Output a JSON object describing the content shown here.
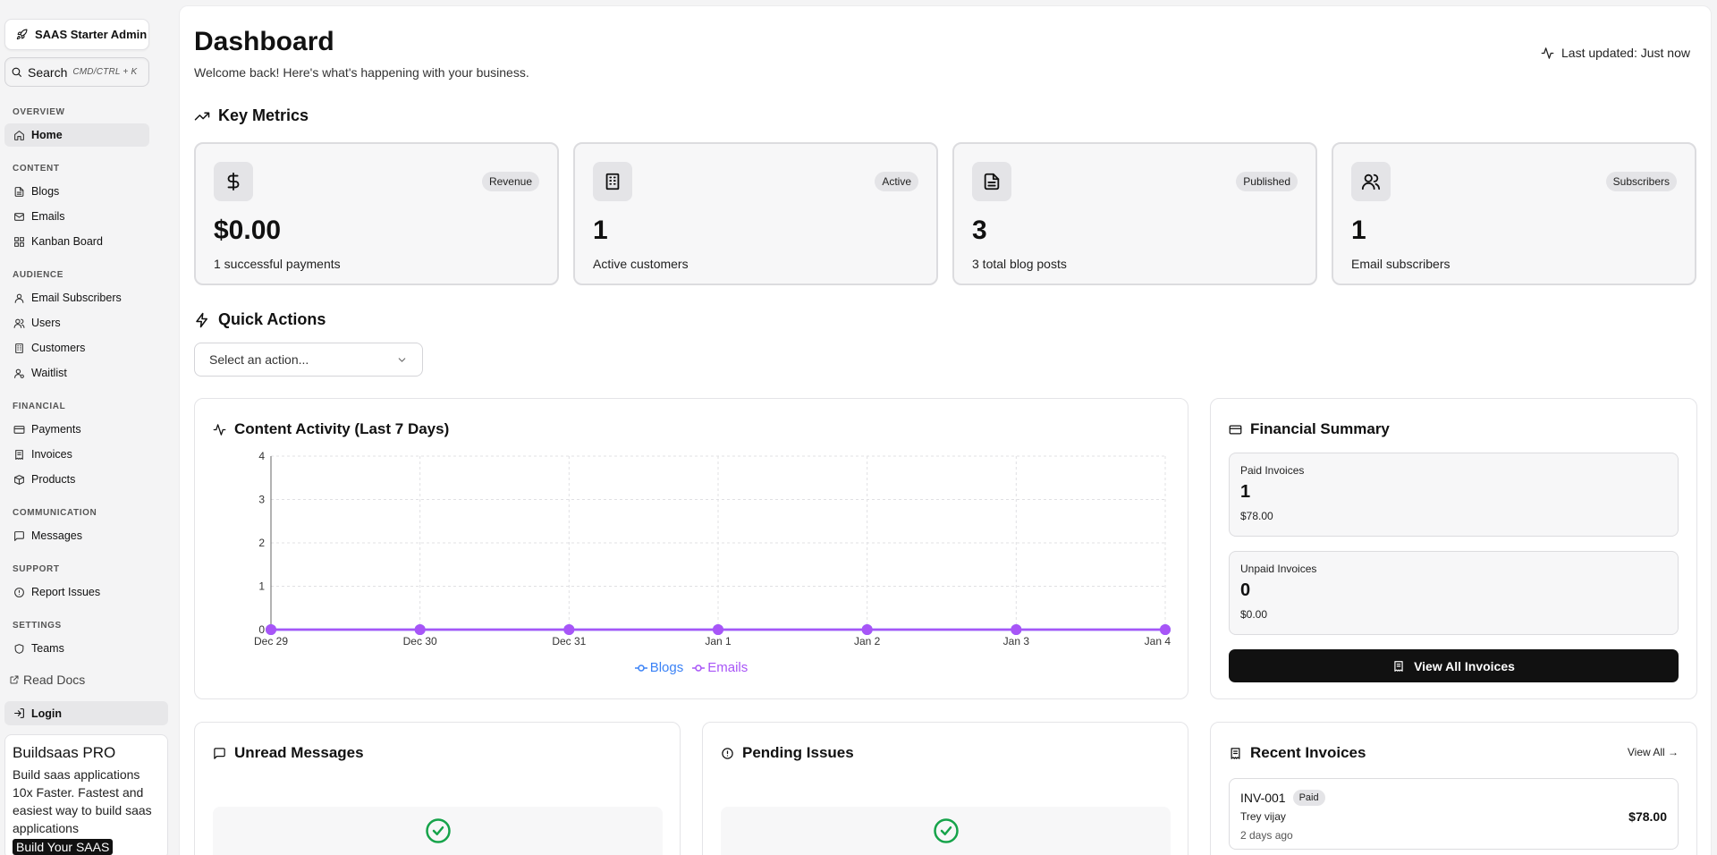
{
  "sidebar": {
    "brand": "SAAS Starter Admin",
    "search": {
      "label": "Search",
      "shortcut": "CMD/CTRL + K"
    },
    "sections": [
      {
        "title": "OVERVIEW",
        "items": [
          {
            "label": "Home",
            "icon": "home-icon",
            "active": true
          }
        ]
      },
      {
        "title": "CONTENT",
        "items": [
          {
            "label": "Blogs",
            "icon": "file-text-icon"
          },
          {
            "label": "Emails",
            "icon": "mail-icon"
          },
          {
            "label": "Kanban Board",
            "icon": "grid-icon"
          }
        ]
      },
      {
        "title": "AUDIENCE",
        "items": [
          {
            "label": "Email Subscribers",
            "icon": "user-icon"
          },
          {
            "label": "Users",
            "icon": "users-icon"
          },
          {
            "label": "Customers",
            "icon": "building-icon"
          },
          {
            "label": "Waitlist",
            "icon": "user-clock-icon"
          }
        ]
      },
      {
        "title": "FINANCIAL",
        "items": [
          {
            "label": "Payments",
            "icon": "credit-card-icon"
          },
          {
            "label": "Invoices",
            "icon": "receipt-icon"
          },
          {
            "label": "Products",
            "icon": "package-icon"
          }
        ]
      },
      {
        "title": "COMMUNICATION",
        "items": [
          {
            "label": "Messages",
            "icon": "message-icon"
          }
        ]
      },
      {
        "title": "SUPPORT",
        "items": [
          {
            "label": "Report Issues",
            "icon": "alert-circle-icon"
          }
        ]
      },
      {
        "title": "SETTINGS",
        "items": [
          {
            "label": "Teams",
            "icon": "shield-icon"
          }
        ]
      }
    ],
    "docs": "Read Docs",
    "login": "Login",
    "promo": {
      "title": "Buildsaas PRO",
      "text": "Build saas applications 10x Faster. Fastest and easiest way to build saas applications",
      "button": "Build Your SAAS"
    }
  },
  "header": {
    "title": "Dashboard",
    "subtitle": "Welcome back! Here's what's happening with your business.",
    "updated": "Last updated: Just now"
  },
  "metrics": {
    "title": "Key Metrics",
    "cards": [
      {
        "badge": "Revenue",
        "value": "$0.00",
        "caption": "1 successful payments",
        "icon": "dollar-icon"
      },
      {
        "badge": "Active",
        "value": "1",
        "caption": "Active customers",
        "icon": "building-icon"
      },
      {
        "badge": "Published",
        "value": "3",
        "caption": "3 total blog posts",
        "icon": "file-text-icon"
      },
      {
        "badge": "Subscribers",
        "value": "1",
        "caption": "Email subscribers",
        "icon": "users-icon"
      }
    ]
  },
  "quick_actions": {
    "title": "Quick Actions",
    "placeholder": "Select an action..."
  },
  "activity": {
    "title": "Content Activity (Last 7 Days)"
  },
  "chart_data": {
    "type": "line",
    "title": "Content Activity (Last 7 Days)",
    "categories": [
      "Dec 29",
      "Dec 30",
      "Dec 31",
      "Jan 1",
      "Jan 2",
      "Jan 3",
      "Jan 4"
    ],
    "series": [
      {
        "name": "Blogs",
        "values": [
          0,
          0,
          0,
          0,
          0,
          0,
          0
        ],
        "color": "#3b82f6"
      },
      {
        "name": "Emails",
        "values": [
          0,
          0,
          0,
          0,
          0,
          0,
          0
        ],
        "color": "#a855f7"
      }
    ],
    "ylim": [
      0,
      4
    ],
    "yticks": [
      0,
      1,
      2,
      3,
      4
    ],
    "grid": true,
    "legend": "bottom"
  },
  "financial": {
    "title": "Financial Summary",
    "paid": {
      "label": "Paid Invoices",
      "count": "1",
      "amount": "$78.00"
    },
    "unpaid": {
      "label": "Unpaid Invoices",
      "count": "0",
      "amount": "$0.00"
    },
    "button": "View All Invoices"
  },
  "unread": {
    "title": "Unread Messages"
  },
  "issues": {
    "title": "Pending Issues"
  },
  "recent": {
    "title": "Recent Invoices",
    "view_all": "View All →",
    "invoices": [
      {
        "id": "INV-001",
        "status": "Paid",
        "customer": "Trey vijay",
        "time": "2 days ago",
        "amount": "$78.00"
      }
    ]
  },
  "colors": {
    "accent": "#111111",
    "blogs": "#3b82f6",
    "emails": "#a855f7",
    "success": "#16a34a"
  }
}
